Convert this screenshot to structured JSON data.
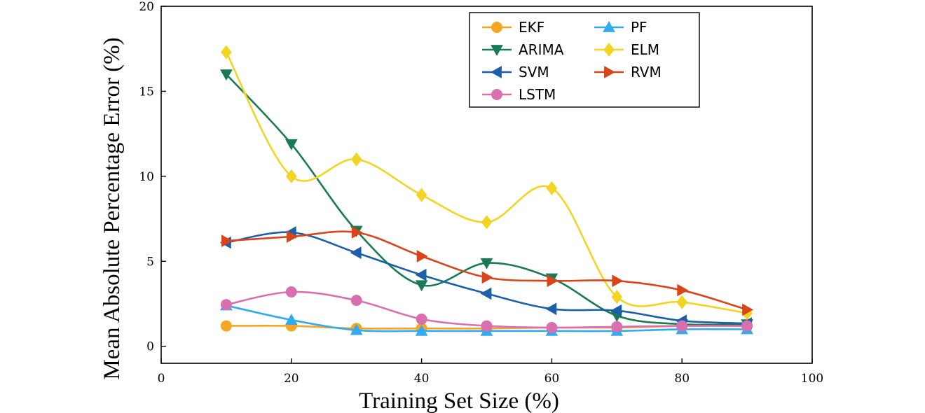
{
  "chart_data": {
    "type": "line",
    "title": "",
    "xlabel": "Training Set Size (%)",
    "ylabel": "Mean Absolute Percentage Error (%)",
    "xlim": [
      0,
      100
    ],
    "ylim": [
      -1,
      20
    ],
    "xticks": [
      0,
      20,
      40,
      60,
      80,
      100
    ],
    "yticks": [
      0,
      5,
      10,
      15,
      20
    ],
    "grid": false,
    "legend_position": "top-right",
    "x": [
      10,
      20,
      30,
      40,
      50,
      60,
      70,
      80,
      90
    ],
    "series": [
      {
        "name": "EKF",
        "color": "#f5a623",
        "marker": "circle",
        "values": [
          1.2,
          1.2,
          1.05,
          1.05,
          1.05,
          1.1,
          1.1,
          1.2,
          1.2
        ]
      },
      {
        "name": "PF",
        "color": "#33aaee",
        "marker": "triangle-up",
        "values": [
          2.4,
          1.55,
          0.95,
          0.9,
          0.9,
          0.9,
          0.9,
          1.0,
          1.0
        ]
      },
      {
        "name": "ARIMA",
        "color": "#1a7a55",
        "marker": "triangle-down",
        "values": [
          16.0,
          11.9,
          6.8,
          3.6,
          4.9,
          4.0,
          1.8,
          1.3,
          1.3
        ]
      },
      {
        "name": "ELM",
        "color": "#f2d422",
        "marker": "diamond",
        "values": [
          17.3,
          10.0,
          11.0,
          8.9,
          7.3,
          9.3,
          2.9,
          2.6,
          1.95
        ]
      },
      {
        "name": "SVM",
        "color": "#1d5fa8",
        "marker": "triangle-left",
        "values": [
          6.1,
          6.7,
          5.5,
          4.2,
          3.1,
          2.2,
          2.1,
          1.5,
          1.35
        ]
      },
      {
        "name": "RVM",
        "color": "#d9441a",
        "marker": "triangle-right",
        "values": [
          6.2,
          6.45,
          6.7,
          5.3,
          4.05,
          3.85,
          3.85,
          3.3,
          2.15
        ]
      },
      {
        "name": "LSTM",
        "color": "#d870b0",
        "marker": "circle",
        "values": [
          2.45,
          3.2,
          2.7,
          1.6,
          1.2,
          1.1,
          1.15,
          1.2,
          1.2
        ]
      }
    ]
  }
}
